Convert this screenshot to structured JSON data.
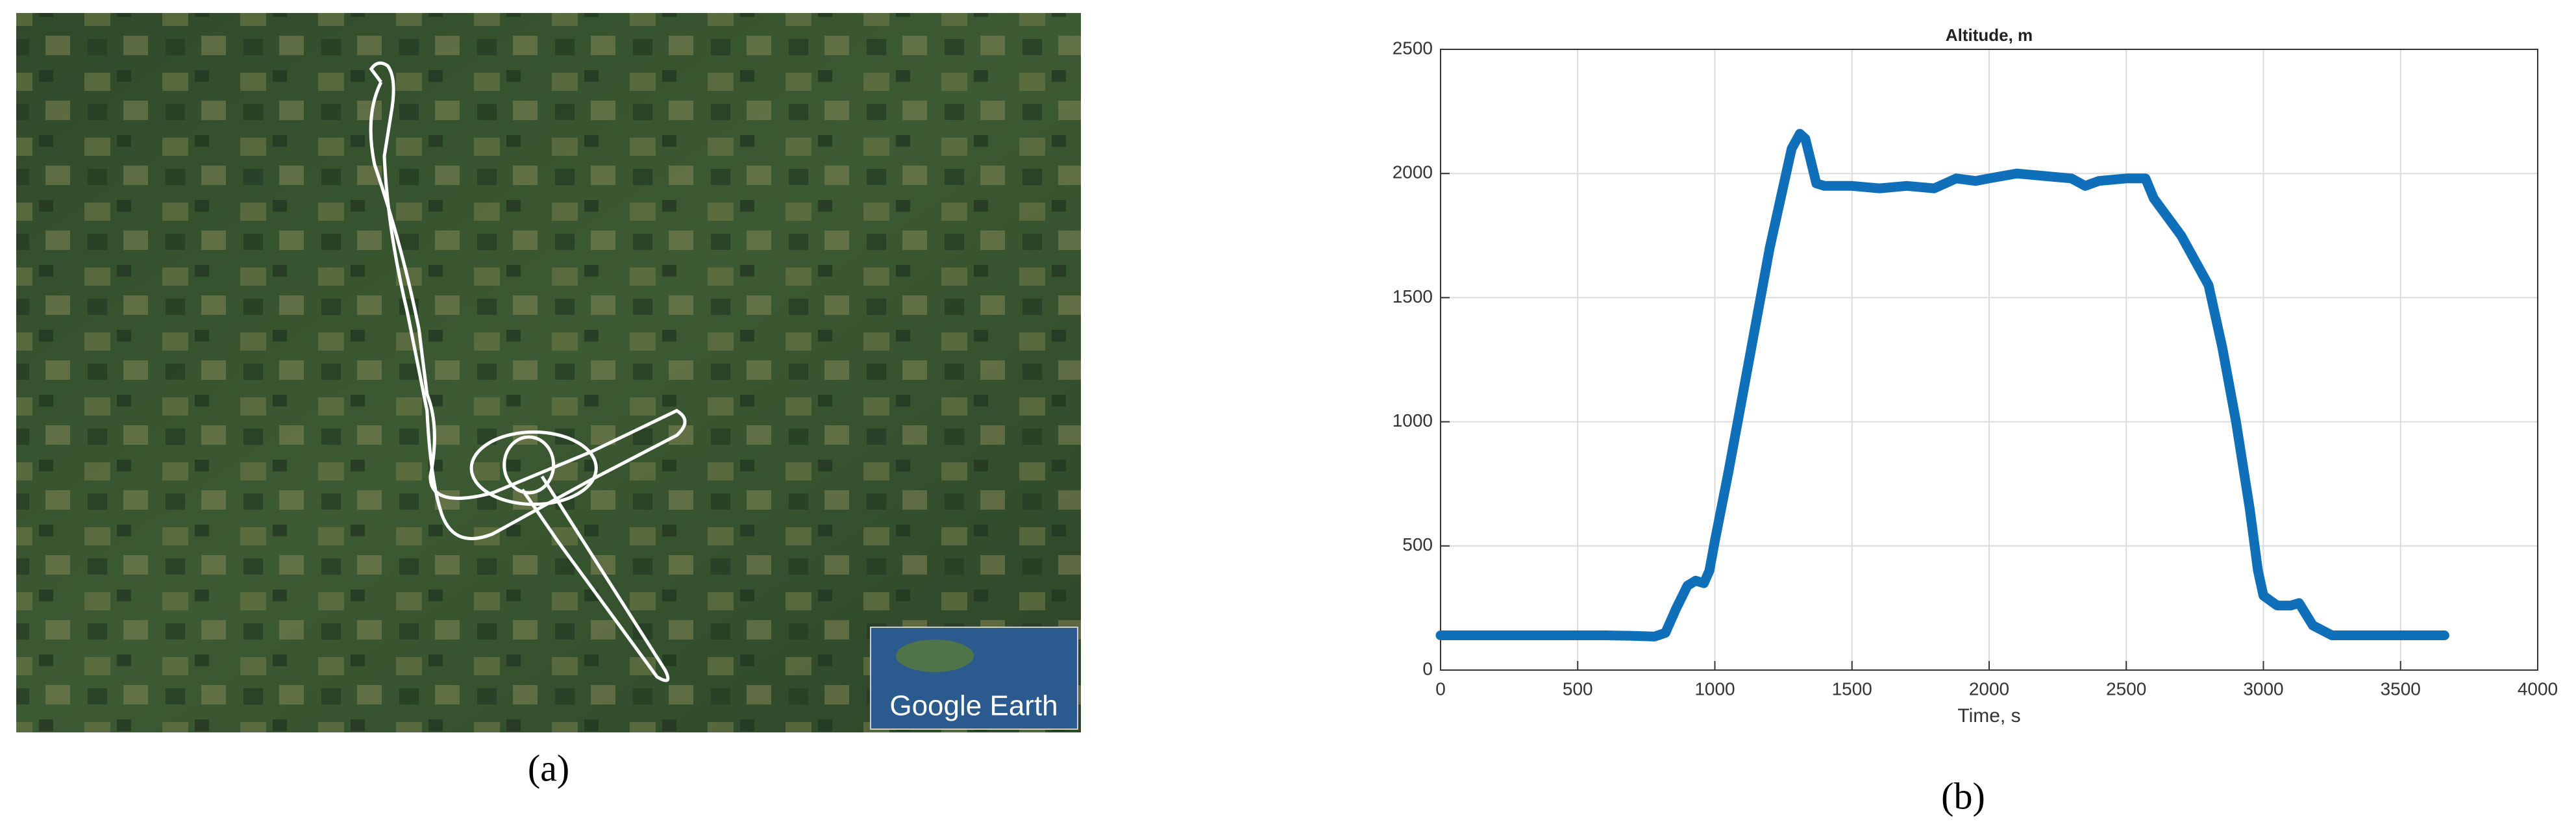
{
  "figure": {
    "panel_a_label": "(a)",
    "panel_b_label": "(b)",
    "map_logo": "Google Earth"
  },
  "chart_data": {
    "type": "line",
    "title": "Altitude, m",
    "x_label": "Time, s",
    "x": [
      0,
      200,
      400,
      600,
      700,
      780,
      820,
      860,
      900,
      930,
      960,
      980,
      1000,
      1050,
      1100,
      1150,
      1200,
      1250,
      1280,
      1310,
      1330,
      1350,
      1370,
      1400,
      1500,
      1600,
      1700,
      1800,
      1880,
      1950,
      2000,
      2100,
      2200,
      2300,
      2350,
      2400,
      2500,
      2570,
      2600,
      2700,
      2800,
      2850,
      2900,
      2950,
      2980,
      3000,
      3050,
      3100,
      3130,
      3180,
      3250,
      3400,
      3660
    ],
    "series": [
      {
        "name": "Altitude",
        "color": "#0f6fb8",
        "values": [
          140,
          140,
          140,
          140,
          138,
          135,
          150,
          250,
          340,
          360,
          350,
          400,
          520,
          800,
          1100,
          1400,
          1700,
          1950,
          2100,
          2160,
          2140,
          2050,
          1960,
          1950,
          1950,
          1940,
          1950,
          1940,
          1980,
          1970,
          1980,
          2000,
          1990,
          1980,
          1950,
          1970,
          1980,
          1980,
          1900,
          1750,
          1550,
          1300,
          1000,
          650,
          400,
          300,
          260,
          260,
          270,
          180,
          140,
          140,
          140
        ]
      }
    ],
    "xlim": [
      0,
      4000
    ],
    "ylim": [
      0,
      2500
    ],
    "xticks": [
      0,
      500,
      1000,
      1500,
      2000,
      2500,
      3000,
      3500,
      4000
    ],
    "yticks": [
      0,
      500,
      1000,
      1500,
      2000,
      2500
    ],
    "grid": true
  }
}
